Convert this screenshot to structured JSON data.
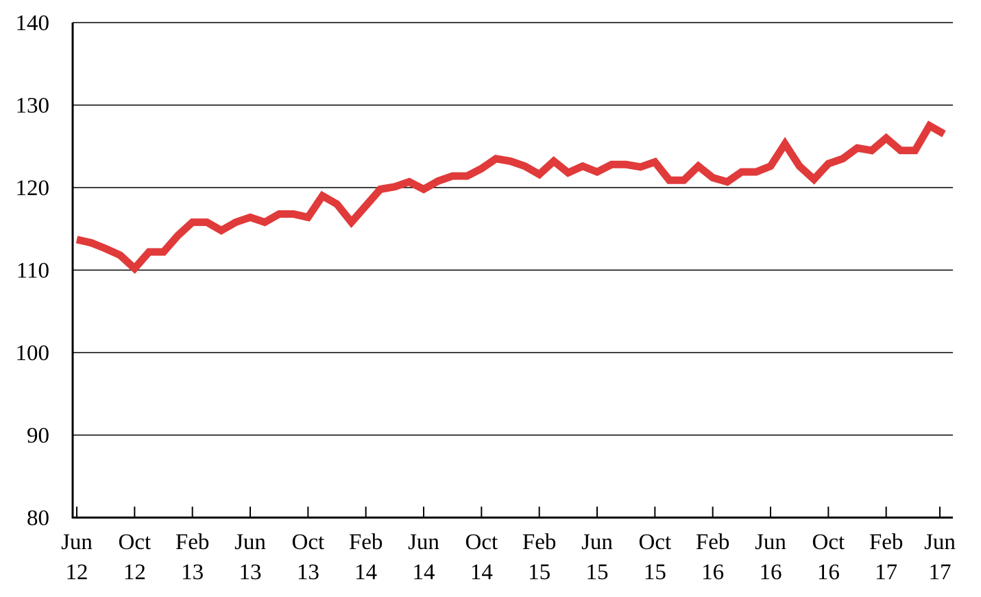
{
  "chart_data": {
    "type": "line",
    "title": "",
    "xlabel": "",
    "ylabel": "",
    "ylim": [
      80,
      140
    ],
    "yticks": [
      80,
      90,
      100,
      110,
      120,
      130,
      140
    ],
    "ytick_labels": [
      "80",
      "90",
      "100",
      "110",
      "120",
      "130",
      "140"
    ],
    "grid": true,
    "line_color": "#e03a3a",
    "xticks": [
      {
        "month": "Jun",
        "year": "12",
        "index": 0
      },
      {
        "month": "Oct",
        "year": "12",
        "index": 4
      },
      {
        "month": "Feb",
        "year": "13",
        "index": 8
      },
      {
        "month": "Jun",
        "year": "13",
        "index": 12
      },
      {
        "month": "Oct",
        "year": "13",
        "index": 16
      },
      {
        "month": "Feb",
        "year": "14",
        "index": 20
      },
      {
        "month": "Jun",
        "year": "14",
        "index": 24
      },
      {
        "month": "Oct",
        "year": "14",
        "index": 28
      },
      {
        "month": "Feb",
        "year": "15",
        "index": 32
      },
      {
        "month": "Jun",
        "year": "15",
        "index": 36
      },
      {
        "month": "Oct",
        "year": "15",
        "index": 40
      },
      {
        "month": "Feb",
        "year": "16",
        "index": 44
      },
      {
        "month": "Jun",
        "year": "16",
        "index": 48
      },
      {
        "month": "Oct",
        "year": "16",
        "index": 52
      },
      {
        "month": "Feb",
        "year": "17",
        "index": 56
      },
      {
        "month": "Jun",
        "year": "17",
        "index": 60
      }
    ],
    "series": [
      {
        "values": [
          113.7,
          113.3,
          112.6,
          111.8,
          110.2,
          112.2,
          112.2,
          114.2,
          115.8,
          115.8,
          114.8,
          115.8,
          116.4,
          115.8,
          116.8,
          116.8,
          116.4,
          119.0,
          118.0,
          115.8,
          117.8,
          119.8,
          120.1,
          120.7,
          119.8,
          120.8,
          121.4,
          121.4,
          122.3,
          123.5,
          123.2,
          122.6,
          121.6,
          123.2,
          121.8,
          122.6,
          121.9,
          122.8,
          122.8,
          122.5,
          123.1,
          120.9,
          120.9,
          122.6,
          121.2,
          120.7,
          121.9,
          121.9,
          122.6,
          125.3,
          122.6,
          121.0,
          122.9,
          123.5,
          124.8,
          124.5,
          126.0,
          124.5,
          124.5,
          127.5,
          126.5
        ]
      }
    ]
  }
}
